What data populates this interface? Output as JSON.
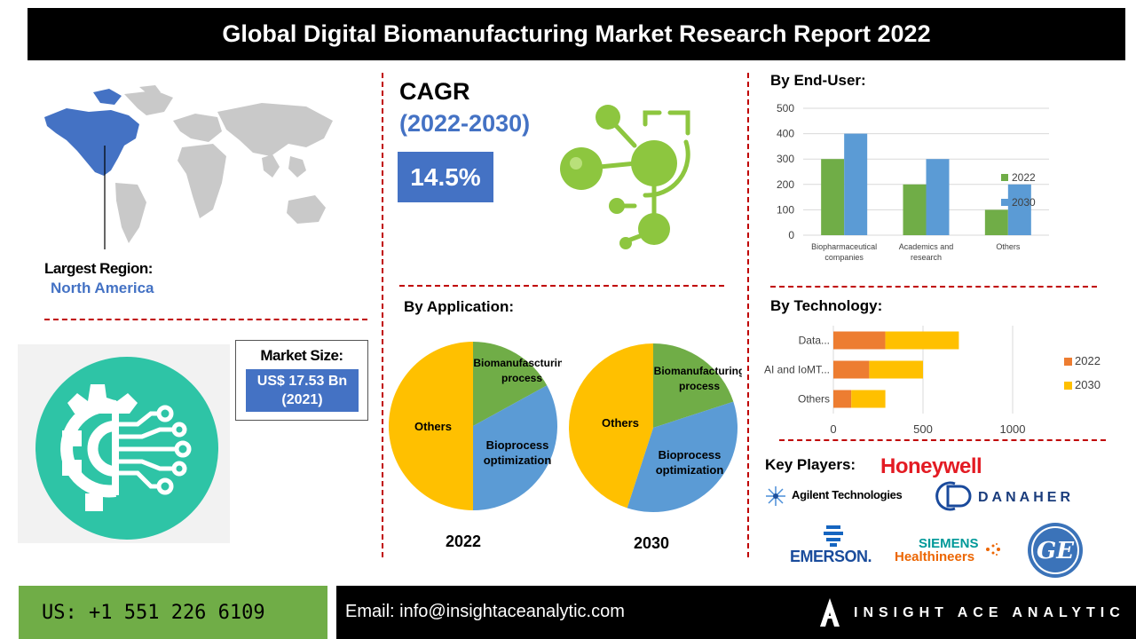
{
  "title": "Global Digital Biomanufacturing Market Research Report 2022",
  "region": {
    "label": "Largest Region:",
    "value": "North America"
  },
  "cagr": {
    "title": "CAGR",
    "period": "(2022-2030)",
    "value": "14.5%"
  },
  "market_size": {
    "label": "Market Size:",
    "value_line1": "US$ 17.53 Bn",
    "value_line2": "(2021)"
  },
  "sections": {
    "end_user": "By End-User:",
    "application": "By Application:",
    "technology": "By Technology:",
    "key_players": "Key Players:"
  },
  "players": [
    "Honeywell",
    "Agilent Technologies",
    "DANAHER",
    "EMERSON.",
    "SIEMENS",
    "Healthineers",
    "GE"
  ],
  "footer": {
    "phone": "US: +1 551 226 6109",
    "email": "Email: info@insightaceanalytic.com",
    "brand": "INSIGHT ACE ANALYTIC"
  },
  "colors": {
    "blue": "#4472c4",
    "green": "#70ad47",
    "orange": "#ed7d31",
    "gold": "#ffc000",
    "light_blue": "#5b9bd5",
    "red_dash": "#c00000"
  },
  "chart_data": [
    {
      "type": "bar",
      "title": "By End-User:",
      "categories": [
        "Biopharmaceutical companies",
        "Academics and research",
        "Others"
      ],
      "series": [
        {
          "name": "2022",
          "values": [
            300,
            200,
            100
          ],
          "color": "#70ad47"
        },
        {
          "name": "2030",
          "values": [
            400,
            300,
            200
          ],
          "color": "#5b9bd5"
        }
      ],
      "ylim": [
        0,
        500
      ],
      "yticks": [
        0,
        100,
        200,
        300,
        400,
        500
      ],
      "legend": "right",
      "grid": true
    },
    {
      "type": "bar",
      "orientation": "horizontal",
      "stacked": true,
      "title": "By Technology:",
      "categories": [
        "Data...",
        "AI and IoMT...",
        "Others"
      ],
      "series": [
        {
          "name": "2022",
          "values": [
            290,
            200,
            100
          ],
          "color": "#ed7d31"
        },
        {
          "name": "2030",
          "values": [
            410,
            300,
            190
          ],
          "color": "#ffc000"
        }
      ],
      "xlim": [
        0,
        1000
      ],
      "xticks": [
        0,
        500,
        1000
      ],
      "legend": "right",
      "grid": true
    },
    {
      "type": "pie",
      "title": "2022",
      "slices": [
        {
          "label": "Biomanufascturing process",
          "value": 17,
          "color": "#70ad47"
        },
        {
          "label": "Bioprocess optimization",
          "value": 33,
          "color": "#5b9bd5"
        },
        {
          "label": "Others",
          "value": 50,
          "color": "#ffc000"
        }
      ]
    },
    {
      "type": "pie",
      "title": "2030",
      "slices": [
        {
          "label": "Biomanufacturing process",
          "value": 20,
          "color": "#70ad47"
        },
        {
          "label": "Bioprocess optimization",
          "value": 35,
          "color": "#5b9bd5"
        },
        {
          "label": "Others",
          "value": 45,
          "color": "#ffc000"
        }
      ]
    }
  ]
}
